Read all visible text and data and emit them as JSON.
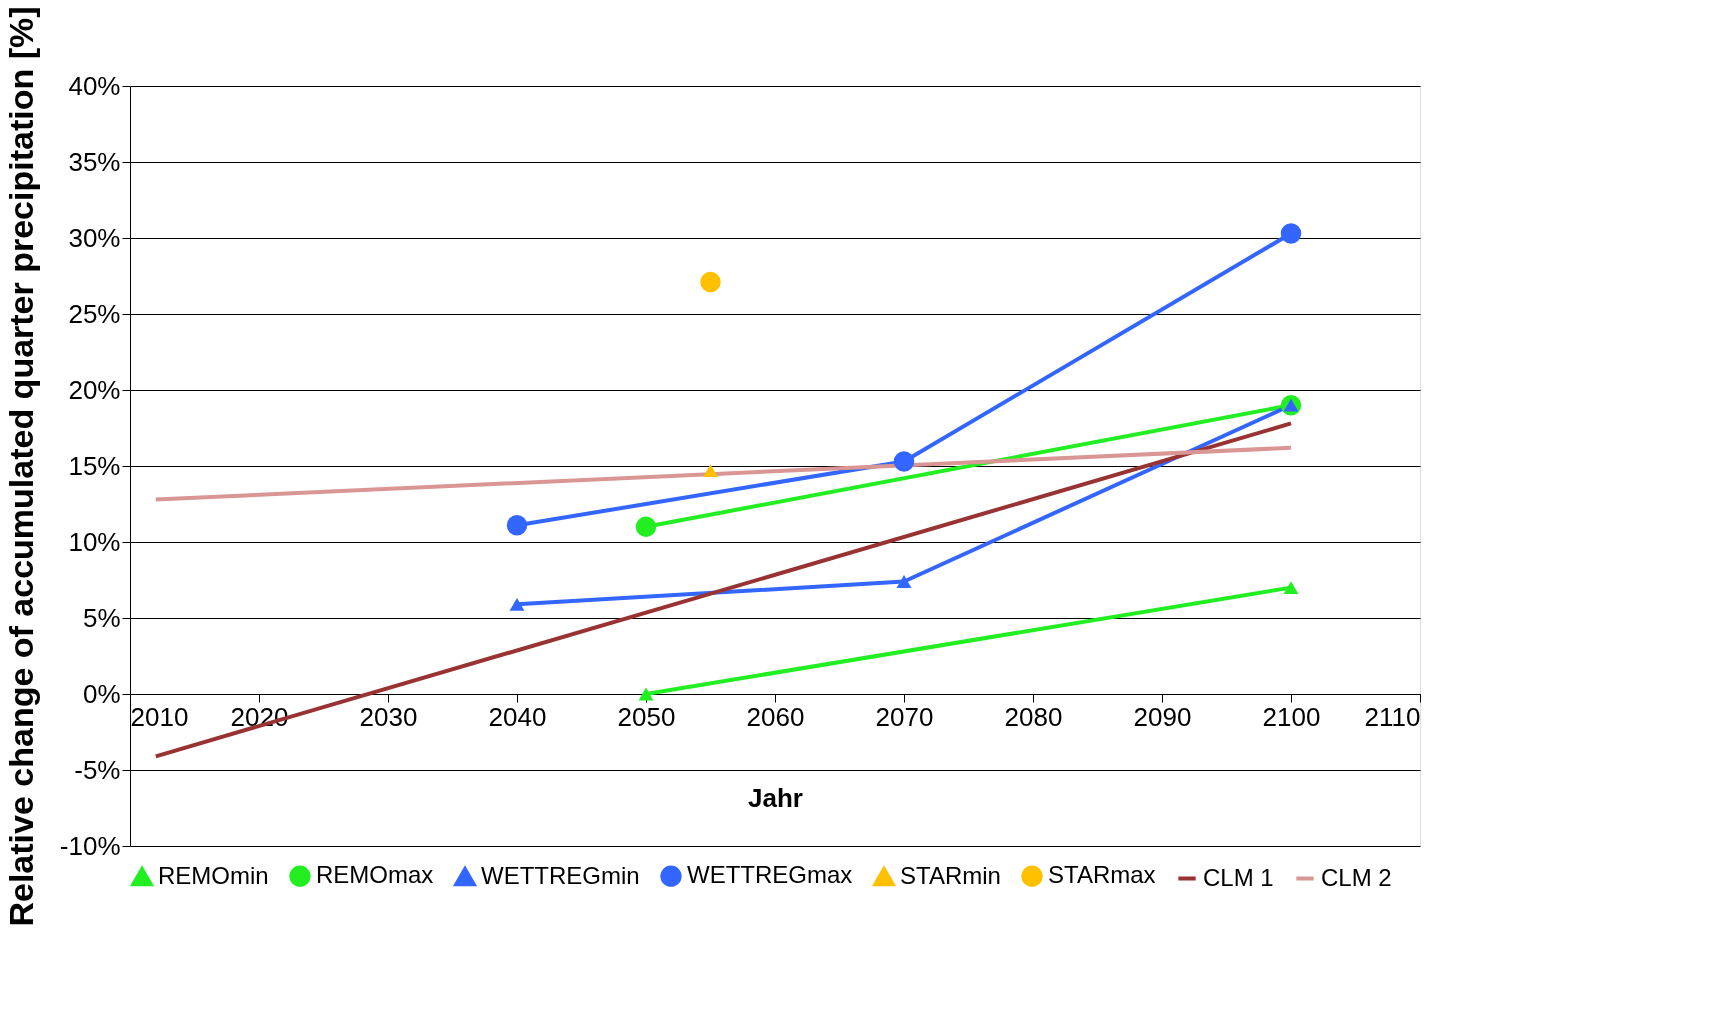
{
  "chart_data": {
    "type": "line",
    "xlabel": "Jahr",
    "ylabel": "Relative change of accumulated quarter precipitation [%]",
    "xlim": [
      2010,
      2110
    ],
    "xticks": [
      2010,
      2020,
      2030,
      2040,
      2050,
      2060,
      2070,
      2080,
      2090,
      2100,
      2110
    ],
    "ylim": [
      -10,
      40
    ],
    "yticks": [
      {
        "value": -10,
        "label": "-10%"
      },
      {
        "value": -5,
        "label": "-5%"
      },
      {
        "value": 0,
        "label": "0%"
      },
      {
        "value": 5,
        "label": "5%"
      },
      {
        "value": 10,
        "label": "10%"
      },
      {
        "value": 15,
        "label": "15%"
      },
      {
        "value": 20,
        "label": "20%"
      },
      {
        "value": 25,
        "label": "25%"
      },
      {
        "value": 30,
        "label": "30%"
      },
      {
        "value": 35,
        "label": "35%"
      },
      {
        "value": 40,
        "label": "40%"
      }
    ],
    "grid": "y",
    "legend": "bottom",
    "series": [
      {
        "name": "REMOmin",
        "color": "#22ee22",
        "marker": "triangle",
        "x": [
          2050,
          2100
        ],
        "values": [
          0,
          7
        ]
      },
      {
        "name": "REMOmax",
        "color": "#22ee22",
        "marker": "circle",
        "x": [
          2050,
          2100
        ],
        "values": [
          11,
          19
        ]
      },
      {
        "name": "WETTREGmin",
        "color": "#3366ff",
        "marker": "triangle",
        "x": [
          2040,
          2070,
          2100
        ],
        "values": [
          5.9,
          7.4,
          19
        ]
      },
      {
        "name": "WETTREGmax",
        "color": "#3366ff",
        "marker": "circle",
        "x": [
          2040,
          2070,
          2100
        ],
        "values": [
          11.1,
          15.3,
          30.3
        ]
      },
      {
        "name": "STARmin",
        "color": "#ffc000",
        "marker": "triangle",
        "x": [
          2055
        ],
        "values": [
          14.7
        ]
      },
      {
        "name": "STARmax",
        "color": "#ffc000",
        "marker": "circle",
        "x": [
          2055
        ],
        "values": [
          27.1
        ]
      },
      {
        "name": "CLM 1",
        "color": "#993333",
        "marker": "none",
        "x": [
          2012,
          2100
        ],
        "values": [
          -4.1,
          17.8
        ]
      },
      {
        "name": "CLM 2",
        "color": "#d99694",
        "marker": "none",
        "x": [
          2012,
          2100
        ],
        "values": [
          12.8,
          16.2
        ]
      }
    ]
  }
}
